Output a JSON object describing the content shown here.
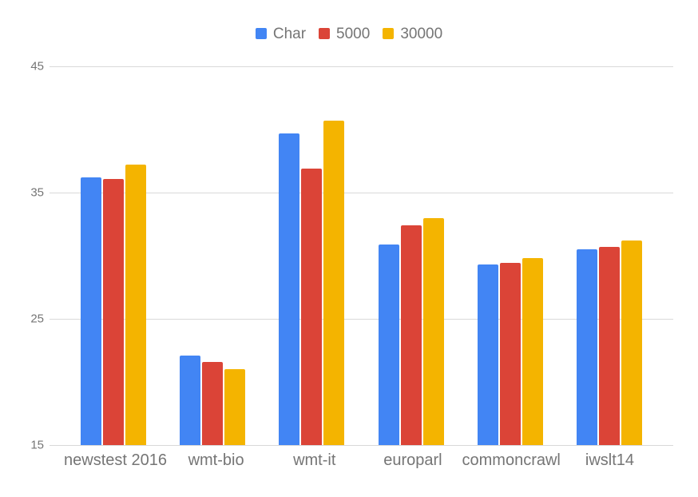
{
  "chart_data": {
    "type": "bar",
    "title": "",
    "categories": [
      "newstest 2016",
      "wmt-bio",
      "wmt-it",
      "europarl",
      "commoncrawl",
      "iwslt14"
    ],
    "series": [
      {
        "name": "Char",
        "color": "#4285f4",
        "values": [
          36.2,
          22.1,
          39.7,
          30.9,
          29.3,
          30.5
        ]
      },
      {
        "name": "5000",
        "color": "#db4437",
        "values": [
          36.1,
          21.6,
          36.9,
          32.4,
          29.4,
          30.7
        ]
      },
      {
        "name": "30000",
        "color": "#f4b400",
        "values": [
          37.2,
          21.0,
          40.7,
          33.0,
          29.8,
          31.2
        ]
      }
    ],
    "ylim": [
      15,
      45
    ],
    "yticks": [
      15,
      25,
      35,
      45
    ],
    "grid": true,
    "legend_position": "top",
    "background_color": "#ffffff",
    "gridline_color": "#d9d9d9",
    "axis_label_color": "#757575"
  }
}
